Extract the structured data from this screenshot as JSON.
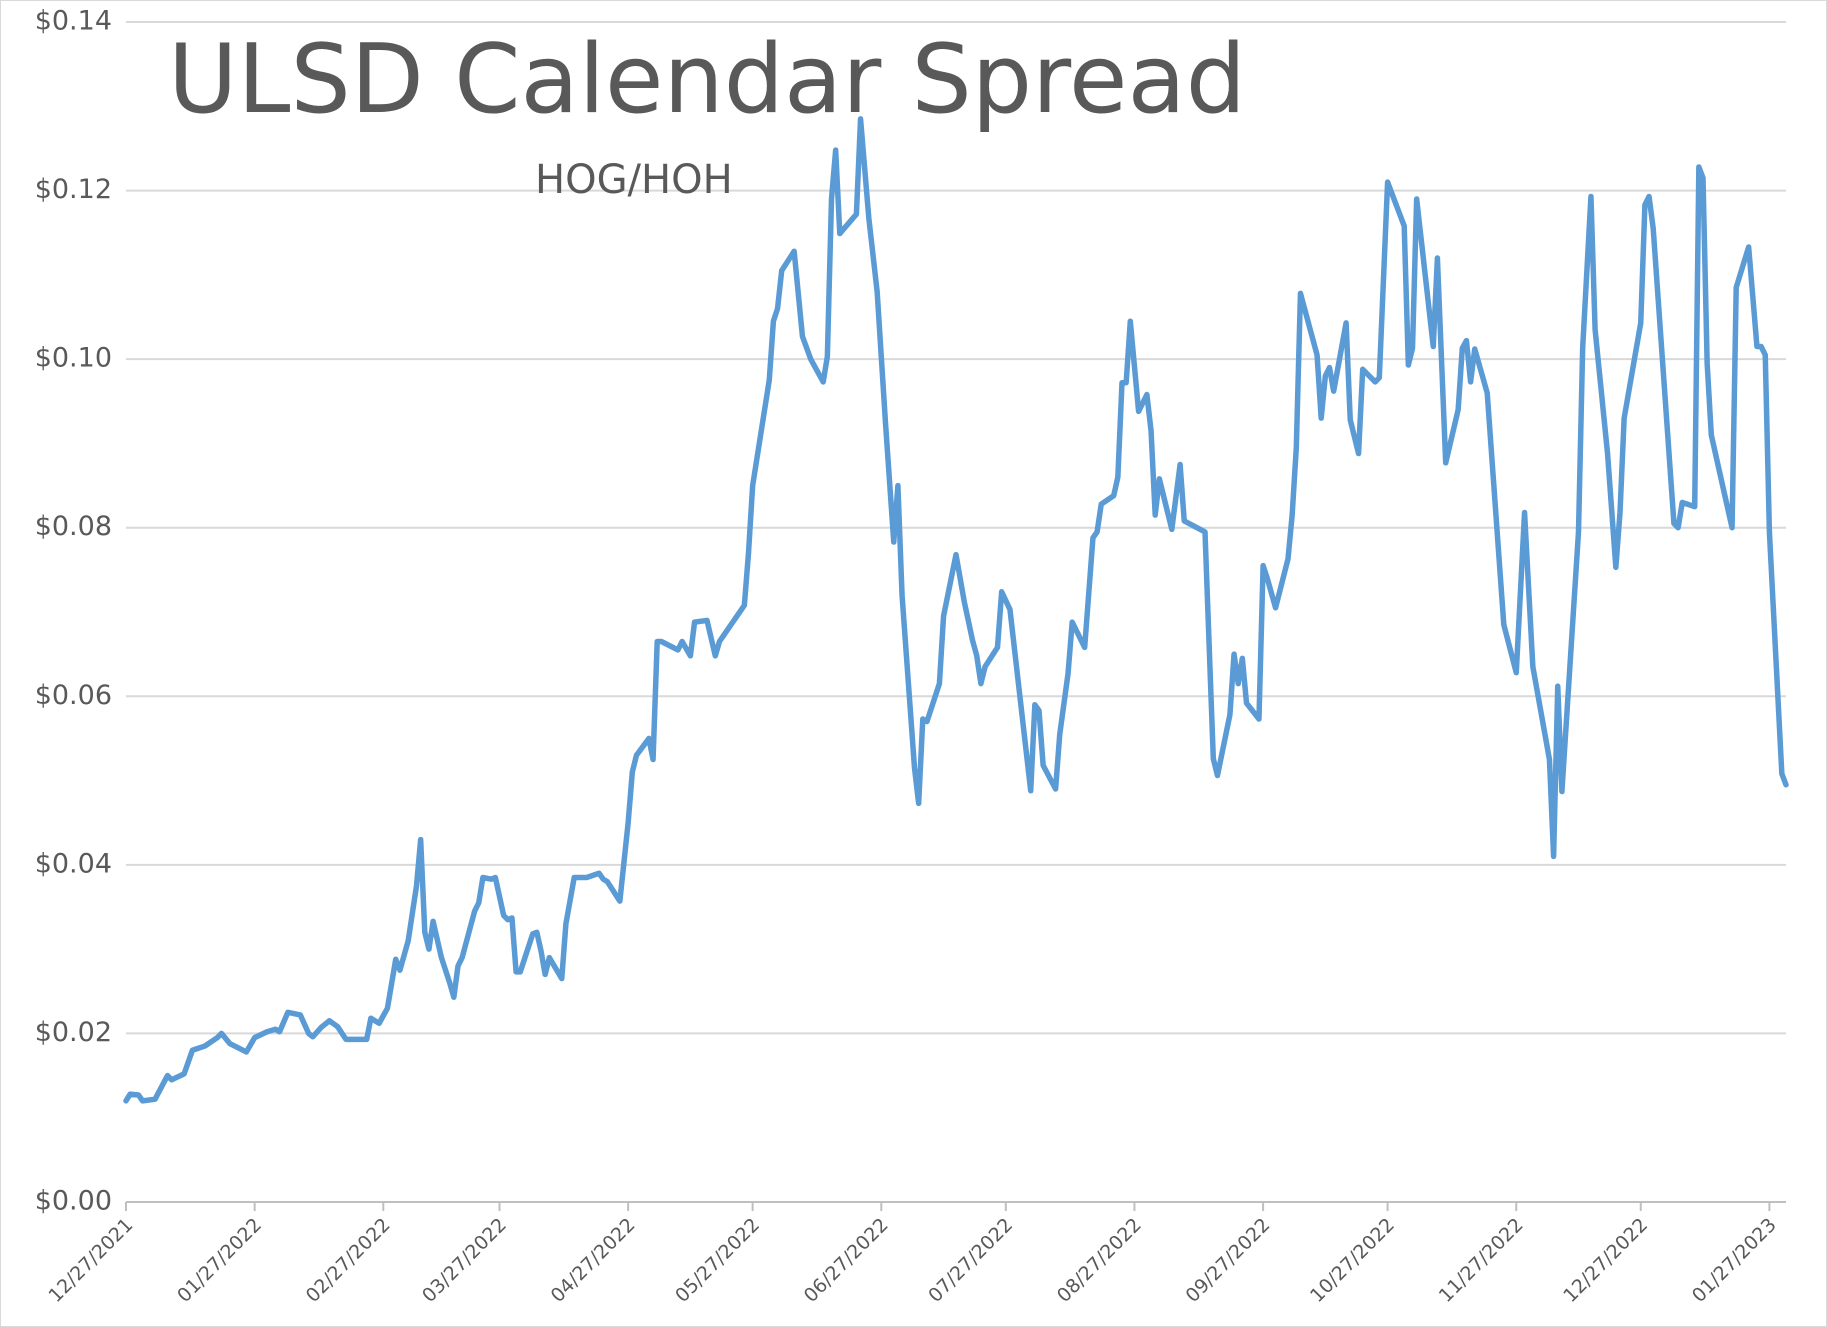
{
  "chart_data": {
    "type": "line",
    "title": "ULSD Calendar Spread",
    "subtitle": "HOG/HOH",
    "color": "#5b9bd5",
    "grid": true,
    "xlim": [
      "2021-12-27",
      "2023-01-31"
    ],
    "xticks": [
      {
        "value": "2021-12-27",
        "label": "12/27/2021"
      },
      {
        "value": "2022-01-27",
        "label": "01/27/2022"
      },
      {
        "value": "2022-02-27",
        "label": "02/27/2022"
      },
      {
        "value": "2022-03-27",
        "label": "03/27/2022"
      },
      {
        "value": "2022-04-27",
        "label": "04/27/2022"
      },
      {
        "value": "2022-05-27",
        "label": "05/27/2022"
      },
      {
        "value": "2022-06-27",
        "label": "06/27/2022"
      },
      {
        "value": "2022-07-27",
        "label": "07/27/2022"
      },
      {
        "value": "2022-08-27",
        "label": "08/27/2022"
      },
      {
        "value": "2022-09-27",
        "label": "09/27/2022"
      },
      {
        "value": "2022-10-27",
        "label": "10/27/2022"
      },
      {
        "value": "2022-11-27",
        "label": "11/27/2022"
      },
      {
        "value": "2022-12-27",
        "label": "12/27/2022"
      },
      {
        "value": "2023-01-27",
        "label": "01/27/2023"
      }
    ],
    "ylim": [
      0,
      0.14
    ],
    "yticks": [
      {
        "value": 0,
        "label": "$0.00"
      },
      {
        "value": 0.02,
        "label": "$0.02"
      },
      {
        "value": 0.04,
        "label": "$0.04"
      },
      {
        "value": 0.06,
        "label": "$0.06"
      },
      {
        "value": 0.08,
        "label": "$0.08"
      },
      {
        "value": 0.1,
        "label": "$0.10"
      },
      {
        "value": 0.12,
        "label": "$0.12"
      },
      {
        "value": 0.14,
        "label": "$0.14"
      }
    ],
    "x": [
      "2021-12-27",
      "2021-12-28",
      "2021-12-30",
      "2021-12-31",
      "2022-01-03",
      "2022-01-06",
      "2022-01-07",
      "2022-01-10",
      "2022-01-12",
      "2022-01-15",
      "2022-01-18",
      "2022-01-19",
      "2022-01-21",
      "2022-01-25",
      "2022-01-27",
      "2022-01-30",
      "2022-02-01",
      "2022-02-02",
      "2022-02-04",
      "2022-02-07",
      "2022-02-09",
      "2022-02-10",
      "2022-02-12",
      "2022-02-14",
      "2022-02-16",
      "2022-02-18",
      "2022-02-23",
      "2022-02-24",
      "2022-02-26",
      "2022-02-28",
      "2022-03-02",
      "2022-03-03",
      "2022-03-05",
      "2022-03-07",
      "2022-03-08",
      "2022-03-09",
      "2022-03-10",
      "2022-03-11",
      "2022-03-13",
      "2022-03-15",
      "2022-03-16",
      "2022-03-17",
      "2022-03-18",
      "2022-03-21",
      "2022-03-22",
      "2022-03-23",
      "2022-03-25",
      "2022-03-26",
      "2022-03-28",
      "2022-03-29",
      "2022-03-30",
      "2022-03-31",
      "2022-04-01",
      "2022-04-04",
      "2022-04-05",
      "2022-04-06",
      "2022-04-07",
      "2022-04-08",
      "2022-04-11",
      "2022-04-12",
      "2022-04-14",
      "2022-04-17",
      "2022-04-20",
      "2022-04-21",
      "2022-04-22",
      "2022-04-25",
      "2022-04-27",
      "2022-04-28",
      "2022-04-29",
      "2022-05-02",
      "2022-05-03",
      "2022-05-04",
      "2022-05-05",
      "2022-05-09",
      "2022-05-10",
      "2022-05-12",
      "2022-05-13",
      "2022-05-16",
      "2022-05-18",
      "2022-05-19",
      "2022-05-25",
      "2022-05-26",
      "2022-05-27",
      "2022-05-31",
      "2022-06-01",
      "2022-06-02",
      "2022-06-03",
      "2022-06-06",
      "2022-06-08",
      "2022-06-10",
      "2022-06-13",
      "2022-06-14",
      "2022-06-15",
      "2022-06-16",
      "2022-06-17",
      "2022-06-21",
      "2022-06-22",
      "2022-06-24",
      "2022-06-26",
      "2022-06-28",
      "2022-06-30",
      "2022-07-01",
      "2022-07-02",
      "2022-07-05",
      "2022-07-06",
      "2022-07-07",
      "2022-07-08",
      "2022-07-11",
      "2022-07-12",
      "2022-07-15",
      "2022-07-17",
      "2022-07-19",
      "2022-07-20",
      "2022-07-21",
      "2022-07-22",
      "2022-07-25",
      "2022-07-26",
      "2022-07-28",
      "2022-07-30",
      "2022-08-02",
      "2022-08-03",
      "2022-08-04",
      "2022-08-05",
      "2022-08-08",
      "2022-08-09",
      "2022-08-11",
      "2022-08-12",
      "2022-08-15",
      "2022-08-17",
      "2022-08-18",
      "2022-08-19",
      "2022-08-22",
      "2022-08-23",
      "2022-08-24",
      "2022-08-25",
      "2022-08-26",
      "2022-08-28",
      "2022-08-30",
      "2022-08-31",
      "2022-09-01",
      "2022-09-02",
      "2022-09-05",
      "2022-09-07",
      "2022-09-08",
      "2022-09-13",
      "2022-09-15",
      "2022-09-16",
      "2022-09-19",
      "2022-09-20",
      "2022-09-21",
      "2022-09-22",
      "2022-09-23",
      "2022-09-26",
      "2022-09-27",
      "2022-09-28",
      "2022-09-30",
      "2022-10-03",
      "2022-10-04",
      "2022-10-05",
      "2022-10-06",
      "2022-10-10",
      "2022-10-11",
      "2022-10-12",
      "2022-10-13",
      "2022-10-14",
      "2022-10-17",
      "2022-10-18",
      "2022-10-20",
      "2022-10-21",
      "2022-10-24",
      "2022-10-25",
      "2022-10-27",
      "2022-10-31",
      "2022-11-01",
      "2022-11-02",
      "2022-11-03",
      "2022-11-07",
      "2022-11-08",
      "2022-11-10",
      "2022-11-13",
      "2022-11-14",
      "2022-11-15",
      "2022-11-16",
      "2022-11-17",
      "2022-11-20",
      "2022-11-24",
      "2022-11-27",
      "2022-11-29",
      "2022-12-01",
      "2022-12-05",
      "2022-12-06",
      "2022-12-07",
      "2022-12-08",
      "2022-12-12",
      "2022-12-13",
      "2022-12-15",
      "2022-12-16",
      "2022-12-19",
      "2022-12-21",
      "2022-12-22",
      "2022-12-23",
      "2022-12-27",
      "2022-12-28",
      "2022-12-29",
      "2022-12-30",
      "2023-01-04",
      "2023-01-05",
      "2023-01-06",
      "2023-01-09",
      "2023-01-10",
      "2023-01-11",
      "2023-01-12",
      "2023-01-13",
      "2023-01-18",
      "2023-01-19",
      "2023-01-22",
      "2023-01-24",
      "2023-01-25",
      "2023-01-26",
      "2023-01-27",
      "2023-01-30",
      "2023-01-31"
    ],
    "values": [
      0.012,
      0.0128,
      0.0127,
      0.012,
      0.0122,
      0.015,
      0.0145,
      0.0152,
      0.018,
      0.0185,
      0.0195,
      0.02,
      0.0188,
      0.0178,
      0.0195,
      0.0202,
      0.0205,
      0.0202,
      0.0225,
      0.0222,
      0.02,
      0.0196,
      0.0207,
      0.0215,
      0.0208,
      0.0193,
      0.0193,
      0.0218,
      0.0212,
      0.023,
      0.0288,
      0.0275,
      0.031,
      0.0375,
      0.043,
      0.032,
      0.03,
      0.0333,
      0.029,
      0.026,
      0.0243,
      0.028,
      0.029,
      0.0345,
      0.0355,
      0.0385,
      0.0383,
      0.0385,
      0.034,
      0.0335,
      0.0337,
      0.0273,
      0.0273,
      0.0318,
      0.032,
      0.0298,
      0.027,
      0.029,
      0.0265,
      0.033,
      0.0385,
      0.0385,
      0.039,
      0.0383,
      0.038,
      0.0357,
      0.045,
      0.051,
      0.053,
      0.055,
      0.0525,
      0.0665,
      0.0665,
      0.0655,
      0.0665,
      0.0648,
      0.0688,
      0.069,
      0.0648,
      0.0665,
      0.0708,
      0.077,
      0.085,
      0.0975,
      0.1045,
      0.106,
      0.1105,
      0.1128,
      0.1027,
      0.1,
      0.0973,
      0.1003,
      0.119,
      0.1248,
      0.1149,
      0.1172,
      0.1285,
      0.1167,
      0.108,
      0.0925,
      0.0783,
      0.085,
      0.072,
      0.0515,
      0.0473,
      0.0573,
      0.057,
      0.0615,
      0.0695,
      0.0768,
      0.0712,
      0.0666,
      0.0648,
      0.0615,
      0.0635,
      0.0658,
      0.0724,
      0.0703,
      0.0617,
      0.0488,
      0.059,
      0.0583,
      0.0518,
      0.049,
      0.0555,
      0.0627,
      0.0688,
      0.0658,
      0.0788,
      0.0795,
      0.0828,
      0.0838,
      0.086,
      0.0972,
      0.0972,
      0.1045,
      0.0938,
      0.0958,
      0.0915,
      0.0815,
      0.0858,
      0.0798,
      0.0875,
      0.0808,
      0.0795,
      0.0526,
      0.0506,
      0.0578,
      0.065,
      0.0615,
      0.0645,
      0.0592,
      0.0573,
      0.0755,
      0.074,
      0.0705,
      0.0763,
      0.0815,
      0.0895,
      0.1078,
      0.1005,
      0.093,
      0.098,
      0.099,
      0.0962,
      0.1043,
      0.0928,
      0.0888,
      0.0988,
      0.0973,
      0.0978,
      0.121,
      0.1158,
      0.0993,
      0.1013,
      0.119,
      0.1015,
      0.112,
      0.0877,
      0.094,
      0.1013,
      0.1022,
      0.0973,
      0.1012,
      0.096,
      0.0685,
      0.0628,
      0.0818,
      0.0635,
      0.0525,
      0.041,
      0.0612,
      0.0487,
      0.0795,
      0.1013,
      0.1193,
      0.1035,
      0.0888,
      0.0753,
      0.0818,
      0.093,
      0.1043,
      0.1183,
      0.1193,
      0.1155,
      0.0805,
      0.08,
      0.083,
      0.0825,
      0.1228,
      0.1215,
      0.0995,
      0.091,
      0.08,
      0.1085,
      0.1133,
      0.1015,
      0.1015,
      0.1005,
      0.0795,
      0.0508,
      0.0495
    ]
  }
}
